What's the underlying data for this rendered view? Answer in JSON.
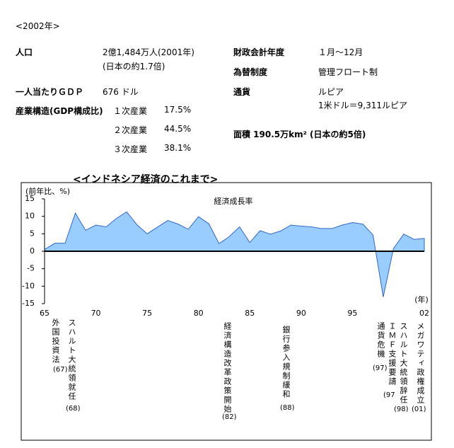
{
  "header": {
    "title": "<2002年>"
  },
  "facts": {
    "left": [
      {
        "label": "人口",
        "value": "2億1,484万人(2001年)",
        "note": "(日本の約1.7倍)"
      },
      {
        "label": "一人当たりＧＤＰ",
        "value": "676 ドル"
      },
      {
        "label": "産業構造(GDP構成比)",
        "rows": [
          [
            "１次産業",
            "17.5%"
          ],
          [
            "２次産業",
            "44.5%"
          ],
          [
            "３次産業",
            "38.1%"
          ]
        ]
      }
    ],
    "right": [
      {
        "label": "財政会計年度",
        "value": "１月～12月"
      },
      {
        "label": "為替制度",
        "value": "管理フロート制"
      },
      {
        "label": "通貨",
        "value": "ルピア",
        "note": "1米ドル＝9,311ルピア"
      },
      {
        "label": "面積 190.5万km² (日本の約5倍)"
      }
    ]
  },
  "chart_data": {
    "type": "area",
    "title": "<インドネシア経済のこれまで>",
    "y_label": "(前年比、%)",
    "x_label": "(年)",
    "x": [
      1965,
      1966,
      1967,
      1968,
      1969,
      1970,
      1971,
      1972,
      1973,
      1974,
      1975,
      1976,
      1977,
      1978,
      1979,
      1980,
      1981,
      1982,
      1983,
      1984,
      1985,
      1986,
      1987,
      1988,
      1989,
      1990,
      1991,
      1992,
      1993,
      1994,
      1995,
      1996,
      1997,
      1998,
      1999,
      2000,
      2001,
      2002
    ],
    "series": [
      {
        "name": "経済成長率",
        "color": "#99ccff",
        "line_color": "#3366cc",
        "values": [
          0.5,
          2.3,
          2.3,
          10.9,
          6.0,
          7.5,
          7.0,
          9.4,
          11.3,
          7.6,
          5.0,
          6.9,
          8.8,
          7.8,
          6.3,
          9.9,
          7.9,
          2.2,
          4.2,
          7.0,
          2.5,
          5.9,
          4.9,
          5.8,
          7.5,
          7.2,
          7.0,
          6.5,
          6.5,
          7.5,
          8.2,
          7.8,
          4.7,
          -13.1,
          0.8,
          4.9,
          3.4,
          3.7
        ]
      }
    ],
    "xlim": [
      1965,
      2002
    ],
    "xticks": [
      {
        "value": 1965,
        "label": "65"
      },
      {
        "value": 1970,
        "label": "70"
      },
      {
        "value": 1975,
        "label": "75"
      },
      {
        "value": 1980,
        "label": "80"
      },
      {
        "value": 1985,
        "label": "85"
      },
      {
        "value": 1990,
        "label": "90"
      },
      {
        "value": 1995,
        "label": "95"
      },
      {
        "value": 2002,
        "label": "02"
      }
    ],
    "ylim": [
      -15,
      15
    ],
    "yticks": [
      15,
      10,
      5,
      0,
      -5,
      -10,
      -15
    ],
    "annotations": [
      {
        "text": "外国投資法",
        "year": "(67)"
      },
      {
        "text": "スハルト大統領就任",
        "year": "(68)"
      },
      {
        "text": "経済構造改革政策開始",
        "year": "(82)"
      },
      {
        "text": "銀行参入規制緩和",
        "year": "(88)"
      },
      {
        "text": "通貨危機",
        "year": "(97)"
      },
      {
        "text": "ＩＭＦ支援要請",
        "year": "(97"
      },
      {
        "text": "スハルト大統領辞任",
        "year": "(98)"
      },
      {
        "text": "メガワティ政権成立",
        "year": "(01)"
      }
    ]
  }
}
